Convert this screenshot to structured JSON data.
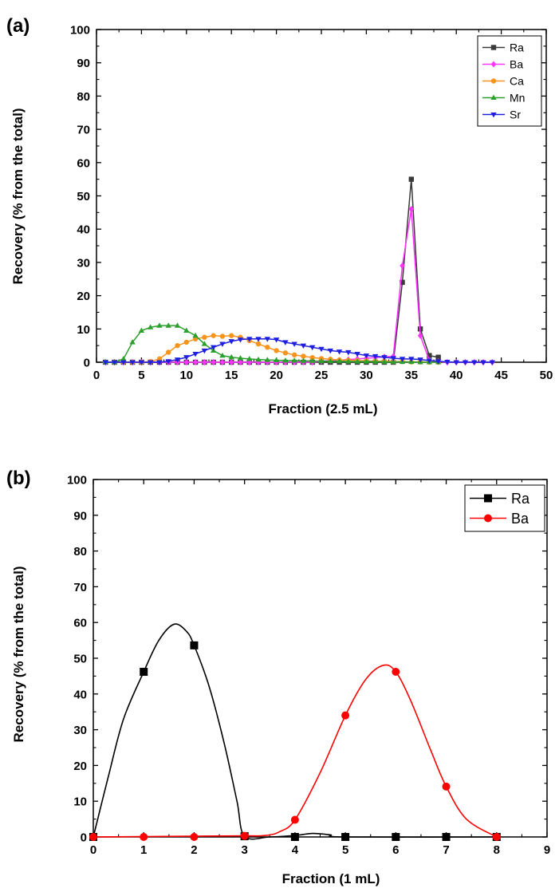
{
  "chart_data": [
    {
      "panel_label": "(a)",
      "type": "line",
      "xlabel": "Fraction (2.5 mL)",
      "ylabel": "Recovery (% from the total)",
      "xlim": [
        0,
        50
      ],
      "ylim": [
        0,
        100
      ],
      "xticks": [
        0,
        5,
        10,
        15,
        20,
        25,
        30,
        35,
        40,
        45,
        50
      ],
      "yticks": [
        0,
        10,
        20,
        30,
        40,
        50,
        60,
        70,
        80,
        90,
        100
      ],
      "grid": false,
      "legend_position": "top-right",
      "series": [
        {
          "name": "Ra",
          "color": "#3a3a3a",
          "marker": "square",
          "x": [
            1,
            2,
            3,
            4,
            5,
            6,
            7,
            8,
            9,
            10,
            11,
            12,
            13,
            14,
            15,
            16,
            17,
            18,
            19,
            20,
            21,
            22,
            23,
            24,
            25,
            26,
            27,
            28,
            29,
            30,
            31,
            32,
            33,
            34,
            35,
            36,
            37,
            38
          ],
          "y": [
            0,
            0,
            0,
            0,
            0,
            0,
            0,
            0,
            0,
            0,
            0,
            0,
            0,
            0,
            0,
            0,
            0,
            0,
            0,
            0,
            0,
            0,
            0,
            0,
            0,
            0,
            0,
            0,
            0,
            0,
            0,
            0,
            0,
            24,
            55,
            10,
            2,
            1.5
          ]
        },
        {
          "name": "Ba",
          "color": "#ff33ff",
          "marker": "diamond",
          "x": [
            1,
            2,
            3,
            4,
            5,
            6,
            7,
            8,
            9,
            10,
            11,
            12,
            13,
            14,
            15,
            16,
            17,
            18,
            19,
            20,
            21,
            22,
            23,
            24,
            25,
            26,
            27,
            28,
            29,
            30,
            31,
            32,
            33,
            34,
            35,
            36,
            37,
            38,
            39,
            40,
            41,
            42,
            43,
            44
          ],
          "y": [
            0,
            0,
            0,
            0,
            0,
            0,
            0,
            0,
            0,
            0,
            0,
            0,
            0,
            0,
            0,
            0,
            0,
            0,
            0,
            0,
            0,
            0,
            0,
            0,
            0.3,
            0.5,
            0.6,
            0.8,
            1,
            1.2,
            1.4,
            1.6,
            1.8,
            29,
            46,
            8,
            0.5,
            0.2,
            0,
            0,
            0,
            0,
            0,
            0
          ]
        },
        {
          "name": "Ca",
          "color": "#f7941d",
          "marker": "circle",
          "x": [
            1,
            2,
            3,
            4,
            5,
            6,
            7,
            8,
            9,
            10,
            11,
            12,
            13,
            14,
            15,
            16,
            17,
            18,
            19,
            20,
            21,
            22,
            23,
            24,
            25,
            26,
            27,
            28,
            29,
            30,
            31,
            32,
            33,
            34,
            35,
            36,
            37,
            38
          ],
          "y": [
            0,
            0,
            0,
            0,
            0,
            0.2,
            1,
            3,
            5,
            6,
            7,
            7.5,
            8,
            7.8,
            8,
            7.5,
            6.5,
            5.5,
            4.5,
            3.5,
            2.8,
            2.2,
            1.8,
            1.4,
            1.1,
            0.9,
            0.7,
            0.6,
            0.5,
            0.4,
            0.3,
            0.3,
            0.2,
            0.2,
            0.1,
            0.1,
            0,
            0
          ]
        },
        {
          "name": "Mn",
          "color": "#2ca02c",
          "marker": "triangle-up",
          "x": [
            1,
            2,
            3,
            4,
            5,
            6,
            7,
            8,
            9,
            10,
            11,
            12,
            13,
            14,
            15,
            16,
            17,
            18,
            19,
            20,
            21,
            22,
            23,
            24,
            25,
            26,
            27,
            28,
            29,
            30,
            31,
            32,
            33,
            34,
            35,
            36,
            37,
            38
          ],
          "y": [
            0,
            0,
            1,
            6,
            9.5,
            10.5,
            11,
            11,
            11,
            9.5,
            8,
            5.5,
            3.5,
            2,
            1.5,
            1.2,
            1,
            0.8,
            0.7,
            0.6,
            0.5,
            0.5,
            0.4,
            0.4,
            0.3,
            0.3,
            0.3,
            0.2,
            0.2,
            0.2,
            0.2,
            0.1,
            0.1,
            0.1,
            0.1,
            0,
            0,
            0
          ]
        },
        {
          "name": "Sr",
          "color": "#1f1fe0",
          "marker": "triangle-down",
          "x": [
            1,
            2,
            3,
            4,
            5,
            6,
            7,
            8,
            9,
            10,
            11,
            12,
            13,
            14,
            15,
            16,
            17,
            18,
            19,
            20,
            21,
            22,
            23,
            24,
            25,
            26,
            27,
            28,
            29,
            30,
            31,
            32,
            33,
            34,
            35,
            36,
            37,
            38,
            39,
            40,
            41,
            42,
            43,
            44
          ],
          "y": [
            0,
            0,
            0,
            0,
            0,
            0,
            0,
            0.3,
            0.8,
            1.5,
            2.5,
            3.5,
            4.5,
            5.5,
            6.3,
            6.8,
            7,
            7,
            7,
            6.8,
            6,
            5.5,
            5,
            4.5,
            4,
            3.5,
            3.2,
            3,
            2.5,
            2,
            1.8,
            1.5,
            1.2,
            1,
            1,
            0.8,
            0.5,
            0.3,
            0.1,
            0,
            0,
            0,
            0,
            0
          ]
        }
      ]
    },
    {
      "panel_label": "(b)",
      "type": "line",
      "xlabel": "Fraction (1 mL)",
      "ylabel": "Recovery (% from the total)",
      "xlim": [
        0,
        9
      ],
      "ylim": [
        0,
        100
      ],
      "xticks": [
        0,
        1,
        2,
        3,
        4,
        5,
        6,
        7,
        8,
        9
      ],
      "yticks": [
        0,
        10,
        20,
        30,
        40,
        50,
        60,
        70,
        80,
        90,
        100
      ],
      "grid": false,
      "legend_position": "top-right",
      "series": [
        {
          "name": "Ra",
          "color": "#000000",
          "marker": "square",
          "x": [
            0,
            1,
            2,
            3,
            4,
            5,
            6,
            7,
            8
          ],
          "y": [
            0,
            46.2,
            53.6,
            0.2,
            0,
            0,
            0,
            0,
            0
          ],
          "curve": [
            [
              0,
              0
            ],
            [
              0.3,
              17
            ],
            [
              0.6,
              33
            ],
            [
              1,
              46.2
            ],
            [
              1.3,
              55
            ],
            [
              1.6,
              59.5
            ],
            [
              1.85,
              57.5
            ],
            [
              2,
              53.6
            ],
            [
              2.3,
              42
            ],
            [
              2.6,
              26
            ],
            [
              2.85,
              10
            ],
            [
              3,
              0.2
            ],
            [
              3.5,
              0
            ],
            [
              4.05,
              0.5
            ],
            [
              4.35,
              1
            ],
            [
              4.7,
              0.6
            ],
            [
              5,
              0
            ],
            [
              8,
              0
            ]
          ]
        },
        {
          "name": "Ba",
          "color": "#ff0000",
          "marker": "circle",
          "x": [
            0,
            1,
            2,
            3,
            4,
            5,
            6,
            7,
            8
          ],
          "y": [
            0,
            0,
            0,
            0.3,
            4.8,
            34,
            46.2,
            14.1,
            0
          ],
          "curve": [
            [
              0,
              0
            ],
            [
              2.8,
              0.3
            ],
            [
              3.4,
              0.4
            ],
            [
              3.7,
              1.5
            ],
            [
              4,
              4.8
            ],
            [
              4.5,
              18
            ],
            [
              5,
              34
            ],
            [
              5.4,
              44
            ],
            [
              5.75,
              48
            ],
            [
              6,
              46.2
            ],
            [
              6.3,
              38
            ],
            [
              6.7,
              24
            ],
            [
              7,
              14.1
            ],
            [
              7.4,
              5
            ],
            [
              8,
              0
            ]
          ]
        }
      ]
    }
  ]
}
